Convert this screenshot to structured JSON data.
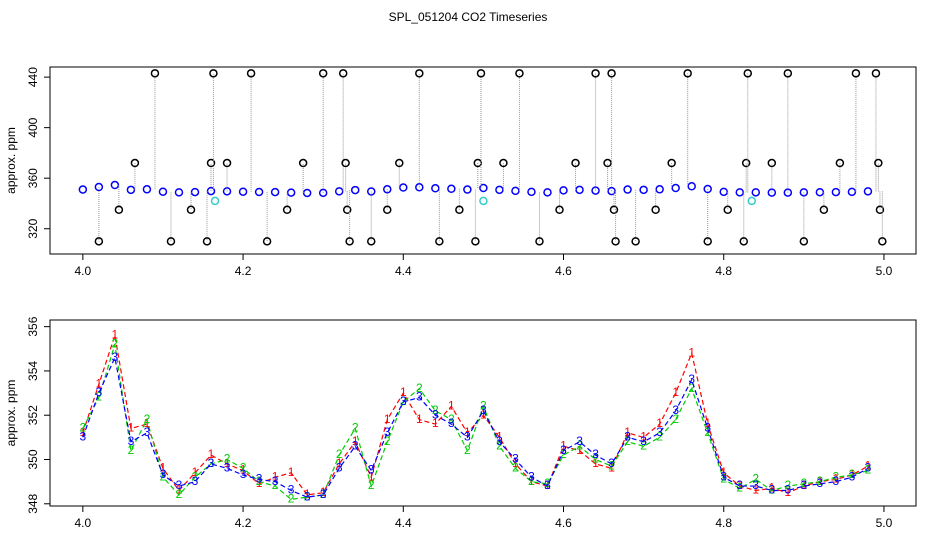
{
  "title": "SPL_051204  CO2 Timeseries",
  "chart_data": [
    {
      "type": "scatter",
      "ylabel": "approx. ppm",
      "xlim": [
        3.959,
        5.04
      ],
      "ylim": [
        300,
        448
      ],
      "xticks": [
        {
          "value": 4,
          "label": "4.0"
        },
        4.2,
        4.4,
        4.6,
        4.8,
        {
          "value": 5,
          "label": "5.0"
        }
      ],
      "yticks": [
        320,
        360,
        400,
        440
      ],
      "series": [
        {
          "color": "#0000ff",
          "marker": "circle",
          "x": [
            4.0,
            4.02,
            4.04,
            4.06,
            4.08,
            4.1,
            4.12,
            4.14,
            4.16,
            4.18,
            4.2,
            4.22,
            4.24,
            4.26,
            4.28,
            4.3,
            4.32,
            4.34,
            4.36,
            4.38,
            4.4,
            4.42,
            4.44,
            4.46,
            4.48,
            4.5,
            4.52,
            4.54,
            4.56,
            4.58,
            4.6,
            4.62,
            4.64,
            4.66,
            4.68,
            4.7,
            4.72,
            4.74,
            4.76,
            4.78,
            4.8,
            4.82,
            4.84,
            4.86,
            4.88,
            4.9,
            4.92,
            4.94,
            4.96,
            4.98
          ],
          "values": [
            351.0,
            353.0,
            354.6,
            350.8,
            351.2,
            349.3,
            348.8,
            349.0,
            349.8,
            349.6,
            349.3,
            349.1,
            349.0,
            348.6,
            348.3,
            348.4,
            349.6,
            350.6,
            349.5,
            351.2,
            352.6,
            352.8,
            352.0,
            351.6,
            351.0,
            352.2,
            350.8,
            350.0,
            349.2,
            348.8,
            350.4,
            350.8,
            350.2,
            349.8,
            351.0,
            350.8,
            351.2,
            352.2,
            353.6,
            351.4,
            349.2,
            348.8,
            348.8,
            348.6,
            348.6,
            348.8,
            348.9,
            349.0,
            349.2,
            349.6
          ]
        },
        {
          "color": "#000000",
          "marker": "circle",
          "drop_lines": true,
          "x": [
            4.02,
            4.045,
            4.065,
            4.09,
            4.11,
            4.135,
            4.155,
            4.16,
            4.163,
            4.18,
            4.21,
            4.23,
            4.255,
            4.275,
            4.3,
            4.325,
            4.328,
            4.33,
            4.333,
            4.36,
            4.38,
            4.395,
            4.42,
            4.445,
            4.47,
            4.49,
            4.493,
            4.497,
            4.525,
            4.545,
            4.57,
            4.595,
            4.615,
            4.64,
            4.655,
            4.66,
            4.663,
            4.665,
            4.69,
            4.715,
            4.735,
            4.755,
            4.78,
            4.805,
            4.825,
            4.828,
            4.83,
            4.86,
            4.88,
            4.9,
            4.925,
            4.945,
            4.965,
            4.99,
            4.993,
            4.995,
            4.998
          ],
          "values": [
            310,
            335,
            372,
            443,
            310,
            335,
            310,
            372,
            443,
            372,
            443,
            310,
            335,
            372,
            443,
            443,
            372,
            335,
            310,
            310,
            335,
            372,
            443,
            310,
            335,
            310,
            372,
            443,
            372,
            443,
            310,
            335,
            372,
            443,
            372,
            443,
            335,
            310,
            310,
            335,
            372,
            443,
            310,
            335,
            310,
            372,
            443,
            372,
            443,
            310,
            335,
            372,
            443,
            443,
            372,
            335,
            310
          ]
        },
        {
          "color": "#33cccc",
          "marker": "circle",
          "x": [
            4.165,
            4.5,
            4.835
          ],
          "values": [
            342,
            342,
            342
          ]
        }
      ]
    },
    {
      "type": "line",
      "ylabel": "approx. ppm",
      "xlim": [
        3.959,
        5.04
      ],
      "ylim": [
        347.9,
        356.3
      ],
      "xticks": [
        {
          "value": 4,
          "label": "4.0"
        },
        4.2,
        4.4,
        4.6,
        4.8,
        {
          "value": 5,
          "label": "5.0"
        }
      ],
      "yticks": [
        348,
        350,
        352,
        354,
        356
      ],
      "x": [
        4.0,
        4.02,
        4.04,
        4.06,
        4.08,
        4.1,
        4.12,
        4.14,
        4.16,
        4.18,
        4.2,
        4.22,
        4.24,
        4.26,
        4.28,
        4.3,
        4.32,
        4.34,
        4.36,
        4.38,
        4.4,
        4.42,
        4.44,
        4.46,
        4.48,
        4.5,
        4.52,
        4.54,
        4.56,
        4.58,
        4.6,
        4.62,
        4.64,
        4.66,
        4.68,
        4.7,
        4.72,
        4.74,
        4.76,
        4.78,
        4.8,
        4.82,
        4.84,
        4.86,
        4.88,
        4.9,
        4.92,
        4.94,
        4.96,
        4.98
      ],
      "series": [
        {
          "color": "#ff0000",
          "pch": "1",
          "values": [
            351.2,
            353.4,
            355.6,
            351.4,
            351.6,
            349.6,
            348.6,
            349.4,
            350.2,
            349.8,
            349.5,
            348.9,
            349.2,
            349.4,
            348.4,
            348.5,
            349.8,
            350.8,
            349.2,
            351.8,
            353.0,
            351.8,
            351.6,
            352.4,
            351.2,
            352.0,
            351.0,
            349.8,
            349.0,
            348.8,
            350.6,
            350.4,
            349.8,
            349.6,
            351.2,
            351.0,
            351.6,
            353.0,
            354.8,
            351.6,
            349.4,
            348.8,
            348.6,
            348.7,
            348.5,
            348.8,
            349.0,
            349.1,
            349.3,
            349.7
          ]
        },
        {
          "color": "#00cc00",
          "pch": "2",
          "values": [
            351.4,
            352.8,
            355.2,
            350.4,
            351.8,
            349.2,
            348.4,
            349.2,
            349.8,
            350.0,
            349.6,
            349.0,
            348.8,
            348.2,
            348.3,
            348.4,
            350.2,
            351.4,
            348.8,
            350.8,
            352.6,
            353.2,
            352.2,
            351.8,
            350.4,
            352.4,
            350.6,
            349.6,
            349.0,
            348.9,
            350.2,
            350.6,
            350.0,
            349.7,
            350.8,
            350.6,
            351.0,
            351.8,
            353.2,
            351.2,
            349.1,
            348.7,
            349.1,
            348.6,
            348.8,
            348.9,
            349.0,
            349.2,
            349.3,
            349.5
          ]
        },
        {
          "color": "#0000ff",
          "pch": "3",
          "values": [
            351.0,
            353.0,
            354.6,
            350.8,
            351.2,
            349.3,
            348.8,
            349.0,
            349.8,
            349.6,
            349.3,
            349.1,
            349.0,
            348.6,
            348.3,
            348.4,
            349.6,
            350.6,
            349.5,
            351.2,
            352.6,
            352.8,
            352.0,
            351.6,
            351.0,
            352.2,
            350.8,
            350.0,
            349.2,
            348.8,
            350.4,
            350.8,
            350.2,
            349.8,
            351.0,
            350.8,
            351.2,
            352.2,
            353.6,
            351.4,
            349.2,
            348.8,
            348.8,
            348.6,
            348.6,
            348.8,
            348.9,
            349.0,
            349.2,
            349.6
          ]
        }
      ]
    }
  ]
}
